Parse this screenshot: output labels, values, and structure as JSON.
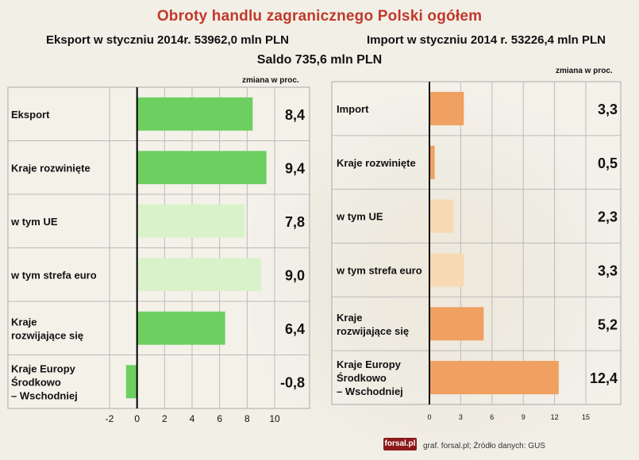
{
  "header": {
    "title": "Obroty handlu zagranicznego Polski ogółem",
    "export_summary": "Eksport w styczniu 2014r. 53962,0 mln PLN",
    "import_summary": "Import w styczniu 2014 r. 53226,4 mln PLN",
    "saldo": "Saldo 735,6 mln PLN",
    "unit_left": "zmiana w proc.",
    "unit_right": "zmiana w proc."
  },
  "footer": {
    "logo": "forsal.pl",
    "credit": "graf. forsal.pl; Źródło danych: GUS"
  },
  "colors": {
    "export_bar": "#6ccf5f",
    "export_bar_light": "#d9f2c9",
    "import_bar": "#f0a060",
    "import_bar_light": "#f7d9b3",
    "title": "#c0392b"
  },
  "chart_data": [
    {
      "type": "bar",
      "orientation": "horizontal",
      "categories": [
        "Eksport",
        "Kraje rozwinięte",
        "w tym UE",
        "w tym strefa euro",
        "Kraje rozwijające się",
        "Kraje Europy Środkowo – Wschodniej"
      ],
      "values": [
        8.4,
        9.4,
        7.8,
        9.0,
        6.4,
        -0.8
      ],
      "value_labels": [
        "8,4",
        "9,4",
        "7,8",
        "9,0",
        "6,4",
        "-0,8"
      ],
      "xlim": [
        -2,
        10
      ],
      "xticks": [
        "-2",
        "0",
        "2",
        "4",
        "6",
        "8",
        "10"
      ],
      "xtick_values": [
        -2,
        0,
        2,
        4,
        6,
        8,
        10
      ],
      "grid": true
    },
    {
      "type": "bar",
      "orientation": "horizontal",
      "categories": [
        "Import",
        "Kraje rozwinięte",
        "w tym UE",
        "w tym strefa euro",
        "Kraje rozwijające się",
        "Kraje Europy Środkowo – Wschodniej"
      ],
      "values": [
        3.3,
        0.5,
        2.3,
        3.3,
        5.2,
        12.4
      ],
      "value_labels": [
        "3,3",
        "0,5",
        "2,3",
        "3,3",
        "5,2",
        "12,4"
      ],
      "xlim": [
        0,
        15
      ],
      "xticks": [
        "0",
        "3",
        "6",
        "9",
        "12",
        "15"
      ],
      "xtick_values": [
        0,
        3,
        6,
        9,
        12,
        15
      ],
      "grid": true
    }
  ]
}
